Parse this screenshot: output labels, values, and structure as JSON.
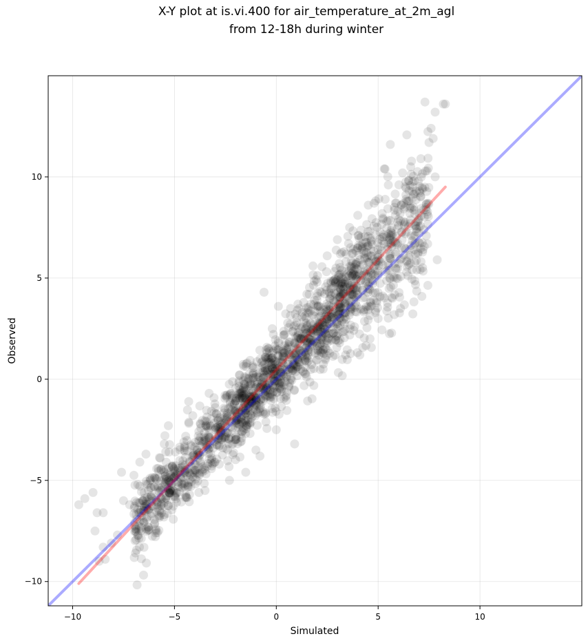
{
  "chart_data": {
    "type": "scatter",
    "title": [
      "X-Y plot at is.vi.400 for air_temperature_at_2m_agl",
      "from 12-18h during winter"
    ],
    "xlabel": "Simulated",
    "ylabel": "Observed",
    "xlim": [
      -11.2,
      15.0
    ],
    "ylim": [
      -11.2,
      15.0
    ],
    "xticks": [
      -10,
      -5,
      0,
      5,
      10
    ],
    "yticks": [
      -10,
      -5,
      0,
      5,
      10
    ],
    "xtick_labels": [
      "−10",
      "−5",
      "0",
      "5",
      "10"
    ],
    "ytick_labels": [
      "−10",
      "−5",
      "0",
      "5",
      "10"
    ],
    "grid": true,
    "point_color": "#000000",
    "point_alpha": 0.1,
    "reference_lines": [
      {
        "kind": "one-to-one",
        "color": "#0000ff",
        "alpha": 0.33,
        "x": [
          -11.2,
          15.0
        ],
        "y": [
          -11.2,
          15.0
        ]
      },
      {
        "kind": "regression",
        "color": "#ff0000",
        "alpha": 0.33,
        "x": [
          -9.7,
          8.3
        ],
        "y": [
          -10.1,
          9.5
        ]
      }
    ],
    "cluster_points": [
      [
        -9.7,
        -6.2
      ],
      [
        -9.4,
        -5.9
      ],
      [
        -9.0,
        -5.6
      ],
      [
        -8.9,
        -7.5
      ],
      [
        -8.8,
        -6.6
      ],
      [
        -8.5,
        -6.6
      ],
      [
        -8.7,
        -9.0
      ],
      [
        -8.5,
        -8.3
      ],
      [
        -8.4,
        -8.9
      ],
      [
        -8.1,
        -8.1
      ],
      [
        -7.8,
        -7.7
      ],
      [
        -7.6,
        -4.6
      ],
      [
        -7.5,
        -6.0
      ],
      [
        -7.2,
        -6.2
      ],
      [
        -6.8,
        -5.2
      ],
      [
        -6.7,
        -4.1
      ],
      [
        -6.5,
        -6.5
      ],
      [
        -6.4,
        -3.7
      ],
      [
        -6.2,
        -4.9
      ],
      [
        -6.0,
        -5.3
      ],
      [
        -5.8,
        -4.4
      ],
      [
        -5.7,
        -3.9
      ],
      [
        -5.5,
        -3.2
      ],
      [
        -5.3,
        -2.3
      ],
      [
        -5.5,
        -6.7
      ],
      [
        -5.0,
        -5.8
      ],
      [
        -4.8,
        -5.1
      ],
      [
        -4.5,
        -4.5
      ],
      [
        -4.3,
        -1.1
      ],
      [
        -4.1,
        -1.8
      ],
      [
        -4.2,
        -5.3
      ],
      [
        -3.8,
        -5.6
      ],
      [
        -3.5,
        -5.5
      ],
      [
        -3.3,
        -0.7
      ],
      [
        -3.0,
        -1.4
      ],
      [
        -2.8,
        -4.2
      ],
      [
        -2.5,
        -2.8
      ],
      [
        -2.3,
        -5.0
      ],
      [
        -2.0,
        -3.0
      ],
      [
        -1.8,
        0.2
      ],
      [
        -1.5,
        -4.6
      ],
      [
        -1.3,
        -1.1
      ],
      [
        -1.0,
        -3.5
      ],
      [
        -0.8,
        -3.8
      ],
      [
        -0.6,
        4.3
      ],
      [
        -0.4,
        1.5
      ],
      [
        -0.2,
        2.5
      ],
      [
        0.0,
        -2.5
      ],
      [
        0.1,
        3.6
      ],
      [
        0.3,
        1.0
      ],
      [
        0.5,
        -0.8
      ],
      [
        0.7,
        3.5
      ],
      [
        0.9,
        -3.2
      ],
      [
        1.0,
        2.8
      ],
      [
        1.3,
        0.4
      ],
      [
        1.5,
        4.2
      ],
      [
        1.8,
        5.6
      ],
      [
        2.0,
        4.8
      ],
      [
        2.3,
        0.5
      ],
      [
        2.5,
        6.1
      ],
      [
        2.7,
        3.2
      ],
      [
        3.0,
        6.9
      ],
      [
        3.2,
        5.4
      ],
      [
        3.4,
        1.2
      ],
      [
        3.6,
        7.5
      ],
      [
        3.8,
        4.5
      ],
      [
        4.0,
        8.1
      ],
      [
        4.1,
        1.2
      ],
      [
        4.3,
        6.2
      ],
      [
        4.5,
        7.3
      ],
      [
        4.6,
        2.0
      ],
      [
        4.8,
        8.7
      ],
      [
        5.0,
        3.0
      ],
      [
        5.1,
        5.8
      ],
      [
        5.3,
        10.4
      ],
      [
        5.5,
        9.6
      ],
      [
        5.6,
        11.6
      ],
      [
        5.7,
        4.0
      ],
      [
        5.8,
        8.5
      ],
      [
        6.0,
        7.9
      ],
      [
        6.1,
        3.5
      ],
      [
        6.2,
        10.2
      ],
      [
        6.4,
        5.3
      ],
      [
        6.5,
        9.8
      ],
      [
        6.6,
        10.5
      ],
      [
        6.8,
        7.1
      ],
      [
        6.9,
        5.4
      ],
      [
        7.0,
        8.2
      ],
      [
        7.1,
        10.9
      ],
      [
        7.2,
        6.4
      ],
      [
        7.3,
        13.7
      ],
      [
        7.4,
        10.3
      ],
      [
        7.5,
        11.7
      ],
      [
        7.6,
        12.4
      ],
      [
        7.7,
        11.9
      ],
      [
        7.8,
        10.0
      ],
      [
        7.8,
        13.2
      ],
      [
        7.9,
        5.9
      ],
      [
        8.2,
        13.6
      ],
      [
        8.3,
        13.6
      ]
    ]
  }
}
